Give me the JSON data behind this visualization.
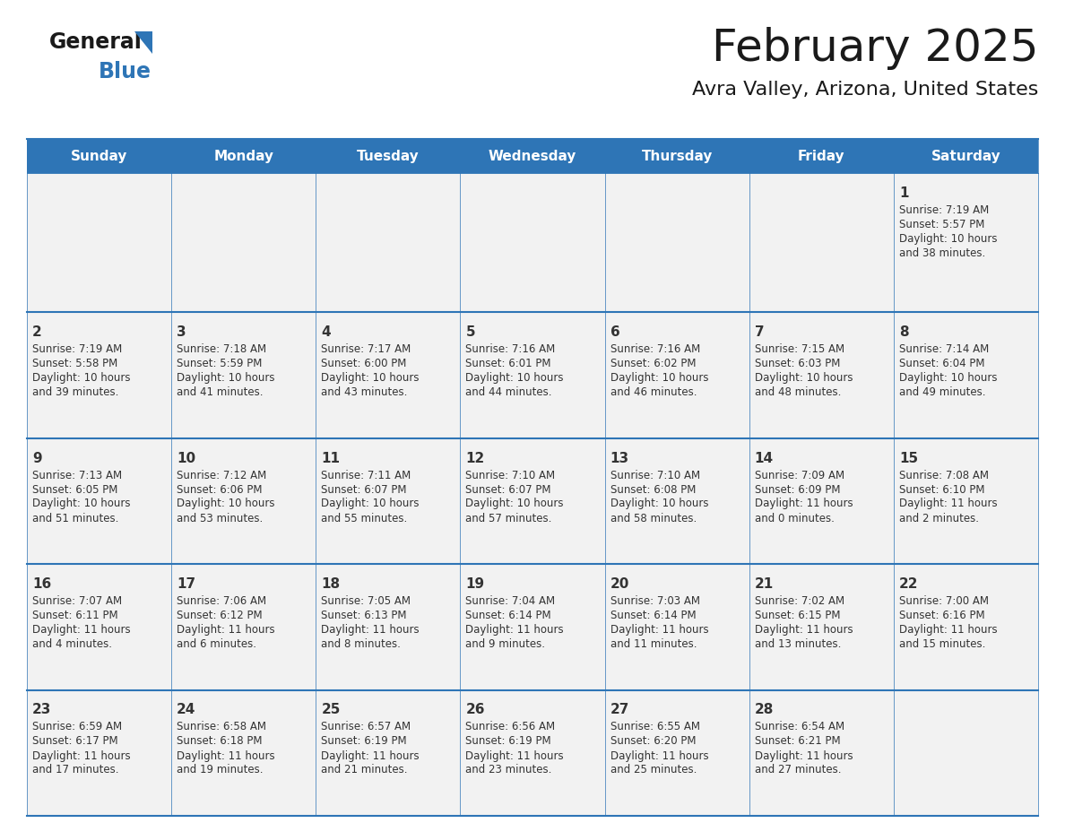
{
  "title": "February 2025",
  "subtitle": "Avra Valley, Arizona, United States",
  "header_bg": "#2E75B6",
  "header_text_color": "#FFFFFF",
  "cell_bg": "#F2F2F2",
  "day_headers": [
    "Sunday",
    "Monday",
    "Tuesday",
    "Wednesday",
    "Thursday",
    "Friday",
    "Saturday"
  ],
  "title_color": "#1a1a1a",
  "subtitle_color": "#1a1a1a",
  "line_color": "#2E75B6",
  "text_color": "#333333",
  "days_data": [
    {
      "day": 1,
      "col": 6,
      "row": 0,
      "sunrise": "7:19 AM",
      "sunset": "5:57 PM",
      "daylight_h": "10 hours",
      "daylight_m": "and 38 minutes."
    },
    {
      "day": 2,
      "col": 0,
      "row": 1,
      "sunrise": "7:19 AM",
      "sunset": "5:58 PM",
      "daylight_h": "10 hours",
      "daylight_m": "and 39 minutes."
    },
    {
      "day": 3,
      "col": 1,
      "row": 1,
      "sunrise": "7:18 AM",
      "sunset": "5:59 PM",
      "daylight_h": "10 hours",
      "daylight_m": "and 41 minutes."
    },
    {
      "day": 4,
      "col": 2,
      "row": 1,
      "sunrise": "7:17 AM",
      "sunset": "6:00 PM",
      "daylight_h": "10 hours",
      "daylight_m": "and 43 minutes."
    },
    {
      "day": 5,
      "col": 3,
      "row": 1,
      "sunrise": "7:16 AM",
      "sunset": "6:01 PM",
      "daylight_h": "10 hours",
      "daylight_m": "and 44 minutes."
    },
    {
      "day": 6,
      "col": 4,
      "row": 1,
      "sunrise": "7:16 AM",
      "sunset": "6:02 PM",
      "daylight_h": "10 hours",
      "daylight_m": "and 46 minutes."
    },
    {
      "day": 7,
      "col": 5,
      "row": 1,
      "sunrise": "7:15 AM",
      "sunset": "6:03 PM",
      "daylight_h": "10 hours",
      "daylight_m": "and 48 minutes."
    },
    {
      "day": 8,
      "col": 6,
      "row": 1,
      "sunrise": "7:14 AM",
      "sunset": "6:04 PM",
      "daylight_h": "10 hours",
      "daylight_m": "and 49 minutes."
    },
    {
      "day": 9,
      "col": 0,
      "row": 2,
      "sunrise": "7:13 AM",
      "sunset": "6:05 PM",
      "daylight_h": "10 hours",
      "daylight_m": "and 51 minutes."
    },
    {
      "day": 10,
      "col": 1,
      "row": 2,
      "sunrise": "7:12 AM",
      "sunset": "6:06 PM",
      "daylight_h": "10 hours",
      "daylight_m": "and 53 minutes."
    },
    {
      "day": 11,
      "col": 2,
      "row": 2,
      "sunrise": "7:11 AM",
      "sunset": "6:07 PM",
      "daylight_h": "10 hours",
      "daylight_m": "and 55 minutes."
    },
    {
      "day": 12,
      "col": 3,
      "row": 2,
      "sunrise": "7:10 AM",
      "sunset": "6:07 PM",
      "daylight_h": "10 hours",
      "daylight_m": "and 57 minutes."
    },
    {
      "day": 13,
      "col": 4,
      "row": 2,
      "sunrise": "7:10 AM",
      "sunset": "6:08 PM",
      "daylight_h": "10 hours",
      "daylight_m": "and 58 minutes."
    },
    {
      "day": 14,
      "col": 5,
      "row": 2,
      "sunrise": "7:09 AM",
      "sunset": "6:09 PM",
      "daylight_h": "11 hours",
      "daylight_m": "and 0 minutes."
    },
    {
      "day": 15,
      "col": 6,
      "row": 2,
      "sunrise": "7:08 AM",
      "sunset": "6:10 PM",
      "daylight_h": "11 hours",
      "daylight_m": "and 2 minutes."
    },
    {
      "day": 16,
      "col": 0,
      "row": 3,
      "sunrise": "7:07 AM",
      "sunset": "6:11 PM",
      "daylight_h": "11 hours",
      "daylight_m": "and 4 minutes."
    },
    {
      "day": 17,
      "col": 1,
      "row": 3,
      "sunrise": "7:06 AM",
      "sunset": "6:12 PM",
      "daylight_h": "11 hours",
      "daylight_m": "and 6 minutes."
    },
    {
      "day": 18,
      "col": 2,
      "row": 3,
      "sunrise": "7:05 AM",
      "sunset": "6:13 PM",
      "daylight_h": "11 hours",
      "daylight_m": "and 8 minutes."
    },
    {
      "day": 19,
      "col": 3,
      "row": 3,
      "sunrise": "7:04 AM",
      "sunset": "6:14 PM",
      "daylight_h": "11 hours",
      "daylight_m": "and 9 minutes."
    },
    {
      "day": 20,
      "col": 4,
      "row": 3,
      "sunrise": "7:03 AM",
      "sunset": "6:14 PM",
      "daylight_h": "11 hours",
      "daylight_m": "and 11 minutes."
    },
    {
      "day": 21,
      "col": 5,
      "row": 3,
      "sunrise": "7:02 AM",
      "sunset": "6:15 PM",
      "daylight_h": "11 hours",
      "daylight_m": "and 13 minutes."
    },
    {
      "day": 22,
      "col": 6,
      "row": 3,
      "sunrise": "7:00 AM",
      "sunset": "6:16 PM",
      "daylight_h": "11 hours",
      "daylight_m": "and 15 minutes."
    },
    {
      "day": 23,
      "col": 0,
      "row": 4,
      "sunrise": "6:59 AM",
      "sunset": "6:17 PM",
      "daylight_h": "11 hours",
      "daylight_m": "and 17 minutes."
    },
    {
      "day": 24,
      "col": 1,
      "row": 4,
      "sunrise": "6:58 AM",
      "sunset": "6:18 PM",
      "daylight_h": "11 hours",
      "daylight_m": "and 19 minutes."
    },
    {
      "day": 25,
      "col": 2,
      "row": 4,
      "sunrise": "6:57 AM",
      "sunset": "6:19 PM",
      "daylight_h": "11 hours",
      "daylight_m": "and 21 minutes."
    },
    {
      "day": 26,
      "col": 3,
      "row": 4,
      "sunrise": "6:56 AM",
      "sunset": "6:19 PM",
      "daylight_h": "11 hours",
      "daylight_m": "and 23 minutes."
    },
    {
      "day": 27,
      "col": 4,
      "row": 4,
      "sunrise": "6:55 AM",
      "sunset": "6:20 PM",
      "daylight_h": "11 hours",
      "daylight_m": "and 25 minutes."
    },
    {
      "day": 28,
      "col": 5,
      "row": 4,
      "sunrise": "6:54 AM",
      "sunset": "6:21 PM",
      "daylight_h": "11 hours",
      "daylight_m": "and 27 minutes."
    }
  ],
  "logo_general_color": "#1a1a1a",
  "logo_blue_color": "#2E75B6",
  "logo_triangle_color": "#2E75B6"
}
